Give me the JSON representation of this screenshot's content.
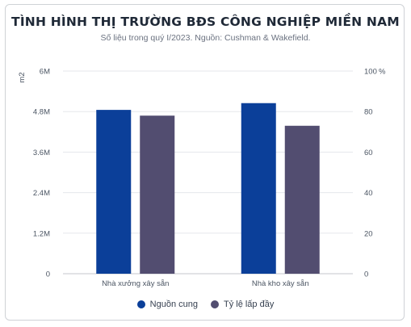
{
  "chart_data": {
    "type": "bar",
    "title": "TÌNH HÌNH THỊ TRƯỜNG BĐS CÔNG NGHIỆP MIỀN NAM",
    "subtitle": "Số liệu trong quý I/2023. Nguồn: Cushman & Wakefield.",
    "categories": [
      "Nhà xưởng xây sẵn",
      "Nhà kho xây sẵn"
    ],
    "series": [
      {
        "name": "Nguồn cung",
        "axis": "left",
        "color": "#0b3f99",
        "values": [
          4850000,
          5050000
        ]
      },
      {
        "name": "Tỷ lệ lấp đầy",
        "axis": "right",
        "color": "#524d70",
        "values": [
          78,
          73
        ]
      }
    ],
    "ylabel_left": "m2",
    "ylabel_right": "%",
    "ylim_left": [
      0,
      6000000
    ],
    "ylim_right": [
      0,
      100
    ],
    "yticks_left": [
      "0",
      "1.2M",
      "2.4M",
      "3.6M",
      "4.8M",
      "6M"
    ],
    "yticks_right": [
      "0",
      "20",
      "40",
      "60",
      "80",
      "100"
    ],
    "grid": true,
    "legend_position": "bottom"
  }
}
